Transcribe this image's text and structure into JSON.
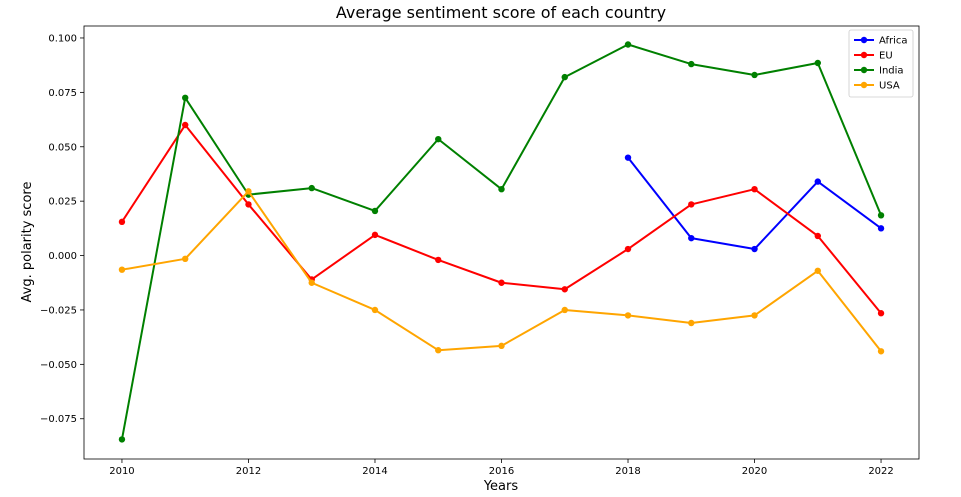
{
  "chart_data": {
    "type": "line",
    "title": "Average sentiment score of each country",
    "xlabel": "Years",
    "ylabel": "Avg. polarity score",
    "xlim": [
      2009.4,
      2022.6
    ],
    "ylim": [
      -0.0935,
      0.1055
    ],
    "xticks": [
      2010,
      2012,
      2014,
      2016,
      2018,
      2020,
      2022
    ],
    "yticks": [
      -0.075,
      -0.05,
      -0.025,
      0.0,
      0.025,
      0.05,
      0.075,
      0.1
    ],
    "xtick_labels": [
      "2010",
      "2012",
      "2014",
      "2016",
      "2018",
      "2020",
      "2022"
    ],
    "ytick_labels": [
      "−0.075",
      "−0.050",
      "−0.025",
      "0.000",
      "0.025",
      "0.050",
      "0.075",
      "0.100"
    ],
    "grid": false,
    "legend_position": "top-right",
    "series": [
      {
        "name": "Africa",
        "color": "#0000ff",
        "x": [
          2018,
          2019,
          2020,
          2021,
          2022
        ],
        "y": [
          0.045,
          0.008,
          0.003,
          0.034,
          0.0125
        ]
      },
      {
        "name": "EU",
        "color": "#ff0000",
        "x": [
          2010,
          2011,
          2012,
          2013,
          2014,
          2015,
          2016,
          2017,
          2018,
          2019,
          2020,
          2021,
          2022
        ],
        "y": [
          0.0155,
          0.06,
          0.0235,
          -0.011,
          0.0095,
          -0.002,
          -0.0125,
          -0.0155,
          0.003,
          0.0235,
          0.0305,
          0.009,
          -0.0265
        ]
      },
      {
        "name": "India",
        "color": "#008000",
        "x": [
          2010,
          2011,
          2012,
          2013,
          2014,
          2015,
          2016,
          2017,
          2018,
          2019,
          2020,
          2021,
          2022
        ],
        "y": [
          -0.0845,
          0.0725,
          0.028,
          0.031,
          0.0205,
          0.0535,
          0.0305,
          0.082,
          0.097,
          0.088,
          0.083,
          0.0885,
          0.0185
        ]
      },
      {
        "name": "USA",
        "color": "#ffa500",
        "x": [
          2010,
          2011,
          2012,
          2013,
          2014,
          2015,
          2016,
          2017,
          2018,
          2019,
          2020,
          2021,
          2022
        ],
        "y": [
          -0.0065,
          -0.0015,
          0.0295,
          -0.0125,
          -0.025,
          -0.0435,
          -0.0415,
          -0.025,
          -0.0275,
          -0.031,
          -0.0275,
          -0.007,
          -0.044
        ]
      }
    ]
  }
}
